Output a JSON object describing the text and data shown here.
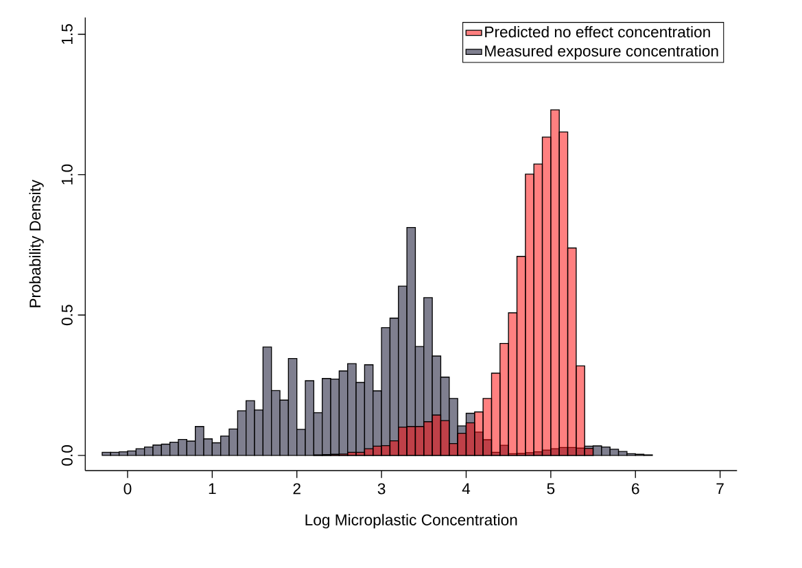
{
  "chart_data": {
    "type": "histogram",
    "xlabel": "Log Microplastic Concentration",
    "ylabel": "Probability Density",
    "bins": [
      -0.3,
      -0.2,
      -0.1,
      0.0,
      0.1,
      0.2,
      0.3,
      0.4,
      0.5,
      0.6,
      0.7,
      0.8,
      0.9,
      1.0,
      1.1,
      1.2,
      1.3,
      1.4,
      1.5,
      1.6,
      1.7,
      1.8,
      1.9,
      2.0,
      2.1,
      2.2,
      2.3,
      2.4,
      2.5,
      2.6,
      2.7,
      2.8,
      2.9,
      3.0,
      3.1,
      3.2,
      3.3,
      3.4,
      3.5,
      3.6,
      3.7,
      3.8,
      3.9,
      4.0,
      4.1,
      4.2,
      4.3,
      4.4,
      4.5,
      4.6,
      4.7,
      4.8,
      4.9,
      5.0,
      5.1,
      5.2,
      5.3,
      5.4,
      5.5,
      5.6,
      5.7,
      5.8,
      5.9,
      6.0,
      6.1,
      6.2
    ],
    "series": [
      {
        "name": "Predicted no effect concentration",
        "color": "#ff8080",
        "values": [
          null,
          null,
          null,
          null,
          null,
          null,
          null,
          null,
          null,
          null,
          null,
          null,
          null,
          null,
          null,
          null,
          null,
          null,
          null,
          null,
          null,
          null,
          null,
          null,
          null,
          0.002,
          0.003,
          0.004,
          0.005,
          0.011,
          0.011,
          0.024,
          0.033,
          0.035,
          0.052,
          0.101,
          0.103,
          0.103,
          0.12,
          0.144,
          0.124,
          0.042,
          0.079,
          0.116,
          0.155,
          0.203,
          0.293,
          0.399,
          0.508,
          0.709,
          1.002,
          1.038,
          1.134,
          1.231,
          1.152,
          0.739,
          0.319,
          0.025,
          null,
          null,
          null,
          null,
          null,
          null,
          null
        ]
      },
      {
        "name": "Measured exposure concentration",
        "color": "#7f7f8f",
        "values": [
          0.011,
          0.011,
          0.013,
          0.016,
          0.024,
          0.03,
          0.037,
          0.04,
          0.047,
          0.057,
          0.051,
          0.103,
          0.059,
          0.045,
          0.069,
          0.094,
          0.159,
          0.195,
          0.162,
          0.386,
          0.231,
          0.197,
          0.345,
          0.093,
          0.266,
          0.152,
          0.274,
          0.272,
          0.301,
          0.327,
          0.26,
          0.323,
          0.23,
          0.455,
          0.489,
          0.603,
          0.812,
          0.388,
          0.562,
          0.354,
          0.279,
          0.203,
          0.105,
          0.15,
          0.083,
          0.056,
          0.011,
          0.036,
          0.006,
          0.007,
          0.01,
          0.013,
          0.019,
          0.024,
          0.028,
          0.028,
          0.026,
          0.033,
          0.034,
          0.03,
          0.022,
          0.014,
          0.006,
          0.004,
          0.002
        ]
      }
    ],
    "xlim": [
      -0.5,
      7.2
    ],
    "ylim": [
      -0.054,
      1.56
    ],
    "xticks": [
      0,
      1,
      2,
      3,
      4,
      5,
      6,
      7
    ],
    "yticks": [
      {
        "value": 0,
        "label": "0.0"
      },
      {
        "value": 0.5,
        "label": "0.5"
      },
      {
        "value": 1.0,
        "label": "1.0"
      },
      {
        "value": 1.5,
        "label": "1.5"
      }
    ],
    "legend": "top right"
  }
}
